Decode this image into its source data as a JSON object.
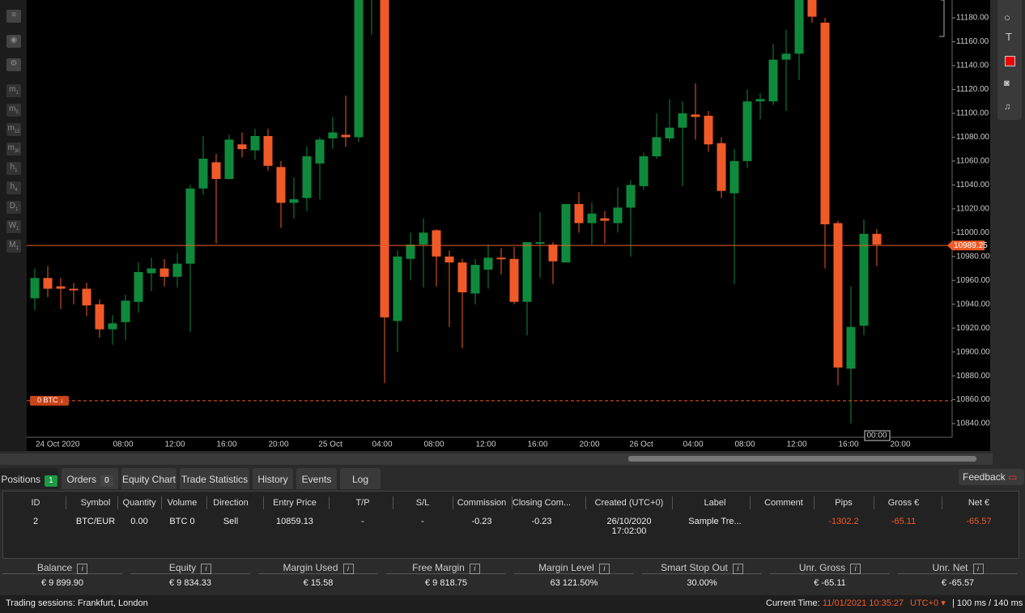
{
  "toolbar": {
    "timeframes": [
      {
        "main": "m",
        "sub": "1"
      },
      {
        "main": "m",
        "sub": "5"
      },
      {
        "main": "m",
        "sub": "15"
      },
      {
        "main": "m",
        "sub": "30"
      },
      {
        "main": "h",
        "sub": "1"
      },
      {
        "main": "h",
        "sub": "4"
      },
      {
        "main": "D",
        "sub": "1"
      },
      {
        "main": "W",
        "sub": "1"
      },
      {
        "main": "M",
        "sub": "1"
      }
    ]
  },
  "chart_data": {
    "type": "candlestick",
    "categories": [
      "24 Oct 2020",
      null,
      null,
      null,
      null,
      null,
      null,
      "08:00",
      null,
      null,
      null,
      "12:00",
      null,
      null,
      null,
      "16:00",
      null,
      null,
      null,
      "20:00",
      null,
      null,
      null,
      "25 Oct",
      null,
      null,
      null,
      "04:00",
      null,
      null,
      null,
      "08:00",
      null,
      null,
      null,
      "12:00",
      null,
      null,
      null,
      "16:00",
      null,
      null,
      null,
      "20:00",
      null,
      null,
      null,
      "26 Oct",
      null,
      null,
      null,
      "04:00",
      null,
      null,
      null,
      "08:00",
      null,
      null,
      null,
      "12:00",
      null,
      null,
      null,
      "16:00",
      null,
      null,
      null,
      "20:00"
    ],
    "open": [
      10945,
      10962,
      10955,
      10953,
      10953,
      10940,
      10919,
      10925,
      10942,
      10966,
      10970,
      10963,
      10974,
      11037,
      11059,
      11045,
      11074,
      11069,
      11081,
      11055,
      11025,
      11029,
      11058,
      11079,
      11082,
      11080,
      11200,
      11230,
      10926,
      10978,
      10990,
      11002,
      10980,
      10975,
      10949,
      10969,
      10979,
      10978,
      10942,
      10991,
      10990,
      10975,
      11024,
      11008,
      11012,
      11008,
      11021,
      11039,
      11064,
      11079,
      11088,
      11099,
      11098,
      11075,
      11033,
      11060,
      11110,
      11110,
      11145,
      11150,
      11200,
      11176,
      11008,
      10886,
      10922,
      10999,
      null,
      null
    ],
    "high": [
      10970,
      10972,
      10962,
      10958,
      10958,
      10944,
      10931,
      10948,
      10975,
      10979,
      10978,
      10983,
      11040,
      11081,
      11066,
      11082,
      11084,
      11087,
      11087,
      11060,
      11046,
      11072,
      11080,
      11097,
      11115,
      11210,
      11240,
      11240,
      10985,
      11000,
      11012,
      11003,
      10985,
      10978,
      10978,
      10990,
      10987,
      10988,
      10992,
      11017,
      10992,
      11024,
      11034,
      11025,
      11018,
      11038,
      11044,
      11067,
      11100,
      11112,
      11110,
      11125,
      11102,
      11080,
      11070,
      11120,
      11117,
      11158,
      11170,
      11210,
      11210,
      11180,
      11010,
      10955,
      11011,
      11003,
      null,
      null
    ],
    "low": [
      10935,
      10946,
      10936,
      10940,
      10930,
      10912,
      10906,
      10910,
      10933,
      10951,
      10955,
      10954,
      10917,
      11032,
      10991,
      11045,
      11063,
      11061,
      11052,
      11004,
      11012,
      11018,
      11028,
      11070,
      11072,
      11076,
      11166,
      10874,
      10900,
      10960,
      10954,
      10955,
      10921,
      10903,
      10940,
      10953,
      10965,
      10940,
      10914,
      10962,
      10957,
      10975,
      11000,
      10990,
      10991,
      11000,
      10980,
      11036,
      11062,
      11076,
      11039,
      11078,
      11068,
      11029,
      10957,
      11054,
      11095,
      11107,
      11102,
      11128,
      11176,
      10970,
      10872,
      10840,
      10914,
      10972,
      null,
      null
    ],
    "close": [
      10962,
      10953,
      10953,
      10952,
      10939,
      10919,
      10924,
      10943,
      10967,
      10970,
      10963,
      10974,
      11037,
      11062,
      11045,
      11078,
      11070,
      11081,
      11056,
      11025,
      11028,
      11064,
      11078,
      11084,
      11080,
      11200,
      11230,
      10929,
      10980,
      10990,
      11000,
      10980,
      10975,
      10950,
      10973,
      10979,
      10978,
      10942,
      10992,
      10992,
      10976,
      11024,
      11008,
      11016,
      11010,
      11021,
      11040,
      11064,
      11080,
      11088,
      11100,
      11097,
      11074,
      11035,
      11060,
      11110,
      11112,
      11145,
      11150,
      11200,
      11181,
      11007,
      10887,
      10921,
      10999,
      10990,
      null,
      null
    ],
    "up_color": "#0f8a3c",
    "down_color": "#f05a28",
    "ylim": [
      10828.5,
      11195
    ],
    "yticks": [
      {
        "value": 10840,
        "label": "10840.00"
      },
      {
        "value": 10860,
        "label": "10860.00"
      },
      {
        "value": 10880,
        "label": "10880.00"
      },
      {
        "value": 10900,
        "label": "10900.00"
      },
      {
        "value": 10920,
        "label": "10920.00"
      },
      {
        "value": 10940,
        "label": "10940.00"
      },
      {
        "value": 10960,
        "label": "10960.00"
      },
      {
        "value": 10980,
        "label": "10980.00"
      },
      {
        "value": 11000,
        "label": "11000.00"
      },
      {
        "value": 11020,
        "label": "11020.00"
      },
      {
        "value": 11040,
        "label": "11040.00"
      },
      {
        "value": 11060,
        "label": "11060.00"
      },
      {
        "value": 11080,
        "label": "11080.00"
      },
      {
        "value": 11100,
        "label": "11100.00"
      },
      {
        "value": 11120,
        "label": "11120.00"
      },
      {
        "value": 11140,
        "label": "11140.00"
      },
      {
        "value": 11160,
        "label": "11160.00"
      },
      {
        "value": 11180,
        "label": "11180.00"
      }
    ],
    "price_line": 10989.25,
    "position_line": {
      "label": "0 BTC",
      "value": 10859.13
    },
    "crosshair_time": "00:00"
  },
  "tabs": [
    {
      "label": "Positions",
      "count": "1"
    },
    {
      "label": "Orders",
      "count": "0"
    },
    {
      "label": "Equity Chart"
    },
    {
      "label": "Trade Statistics"
    },
    {
      "label": "History"
    },
    {
      "label": "Events"
    },
    {
      "label": "Log"
    }
  ],
  "feedback": "Feedback",
  "positions": {
    "headers": [
      "ID",
      "Symbol",
      "Quantity",
      "Volume",
      "Direction",
      "Entry Price",
      "T/P",
      "S/L",
      "Commission",
      "Closing Com...",
      "Created (UTC+0)",
      "Label",
      "Comment",
      "Pips",
      "Gross €",
      "Net €"
    ],
    "rows": [
      [
        "2",
        "BTC/EUR",
        "0.00",
        "BTC 0",
        "Sell",
        "10859.13",
        "-",
        "-",
        "-0.23",
        "-0.23",
        "26/10/2020 17:02:00",
        "Sample Tre...",
        null,
        "-1302.2",
        "-65.11",
        "-65.57"
      ]
    ]
  },
  "summary": [
    {
      "label": "Balance",
      "value": "€ 9 899.90"
    },
    {
      "label": "Equity",
      "value": "€ 9 834.33"
    },
    {
      "label": "Margin Used",
      "value": "€ 15.58"
    },
    {
      "label": "Free Margin",
      "value": "€ 9 818.75"
    },
    {
      "label": "Margin Level",
      "value": "63 121.50%"
    },
    {
      "label": "Smart Stop Out",
      "value": "30.00%"
    },
    {
      "label": "Unr. Gross",
      "value": "€ -65.11"
    },
    {
      "label": "Unr. Net",
      "value": "€ -65.57"
    }
  ],
  "status": {
    "sessions": "Trading sessions: Frankfurt, London",
    "time_label": "Current Time:",
    "time": "11/01/2021 10:35:27",
    "tz": "UTC+0",
    "latency": "| 100 ms / 140 ms"
  }
}
